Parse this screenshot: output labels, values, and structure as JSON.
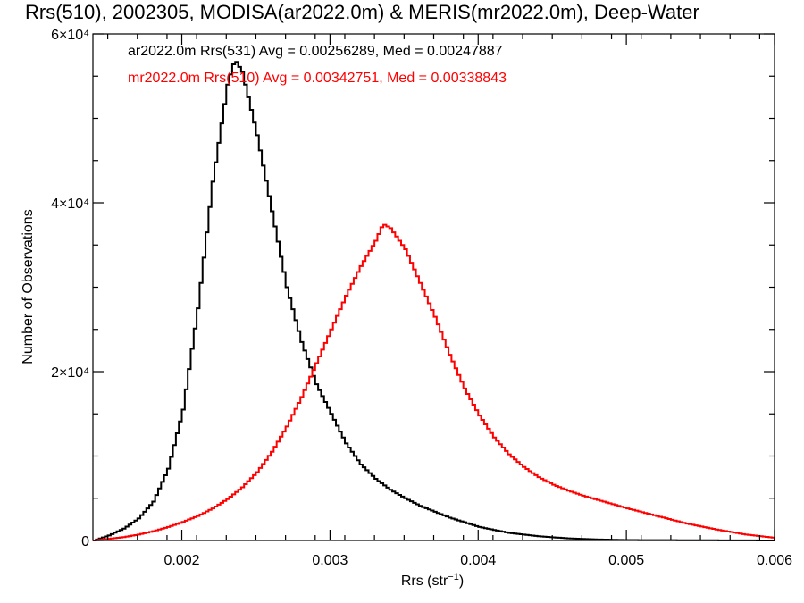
{
  "chart_data": {
    "type": "line",
    "title": "Rrs(510), 2002305, MODISA(ar2022.0m) & MERIS(mr2022.0m), Deep-Water",
    "xlabel": "Rrs (str-1)",
    "ylabel": "Number of Observations",
    "xlim": [
      0.0014,
      0.006
    ],
    "ylim": [
      0,
      60000
    ],
    "x_ticks": [
      0.002,
      0.003,
      0.004,
      0.005,
      0.006
    ],
    "x_tick_labels": [
      "0.002",
      "0.003",
      "0.004",
      "0.005",
      "0.006"
    ],
    "y_ticks": [
      0,
      20000,
      40000,
      60000
    ],
    "y_tick_labels": [
      "0",
      "2×10⁴",
      "4×10⁴",
      "6×10⁴"
    ],
    "grid": false,
    "legend_position": "top-left",
    "series": [
      {
        "name": "ar2022.0m Rrs(531)",
        "color": "#000000",
        "stats_label": "ar2022.0m Rrs(531) Avg = 0.00256289, Med = 0.00247887",
        "x": [
          0.0014,
          0.0015,
          0.0016,
          0.0017,
          0.0018,
          0.0019,
          0.002,
          0.0021,
          0.0022,
          0.0023,
          0.00235,
          0.0024,
          0.0025,
          0.0026,
          0.0027,
          0.0028,
          0.0029,
          0.003,
          0.0031,
          0.0032,
          0.0033,
          0.0034,
          0.0035,
          0.0036,
          0.0038,
          0.004,
          0.0042,
          0.0044,
          0.0046,
          0.0048,
          0.005,
          0.006
        ],
        "values": [
          0,
          600,
          1400,
          2600,
          4600,
          8500,
          15500,
          27500,
          42500,
          54000,
          57000,
          55500,
          48000,
          39000,
          30000,
          23500,
          18500,
          15000,
          11500,
          9000,
          7300,
          6000,
          5000,
          4100,
          2700,
          1600,
          900,
          500,
          250,
          120,
          50,
          0
        ]
      },
      {
        "name": "mr2022.0m Rrs(510)",
        "color": "#ff0000",
        "stats_label": "mr2022.0m Rrs(510) Avg = 0.00342751, Med = 0.00338843",
        "x": [
          0.0014,
          0.0015,
          0.0016,
          0.0017,
          0.0018,
          0.0019,
          0.002,
          0.0021,
          0.0022,
          0.0023,
          0.0024,
          0.0025,
          0.0026,
          0.0027,
          0.0028,
          0.0029,
          0.003,
          0.0031,
          0.0032,
          0.0033,
          0.00335,
          0.0034,
          0.0035,
          0.0036,
          0.0037,
          0.0038,
          0.0039,
          0.004,
          0.0041,
          0.0042,
          0.0043,
          0.0044,
          0.0045,
          0.0046,
          0.0047,
          0.0048,
          0.005,
          0.0052,
          0.0054,
          0.0056,
          0.0058,
          0.006
        ],
        "values": [
          0,
          200,
          400,
          700,
          1100,
          1600,
          2200,
          2900,
          3800,
          4900,
          6300,
          8100,
          10500,
          13500,
          17000,
          21000,
          25000,
          29000,
          32500,
          35500,
          37500,
          37000,
          34500,
          30500,
          26500,
          22000,
          18000,
          14800,
          12200,
          10200,
          8700,
          7500,
          6600,
          5900,
          5300,
          4800,
          3800,
          2900,
          2000,
          1300,
          700,
          300
        ]
      }
    ]
  }
}
